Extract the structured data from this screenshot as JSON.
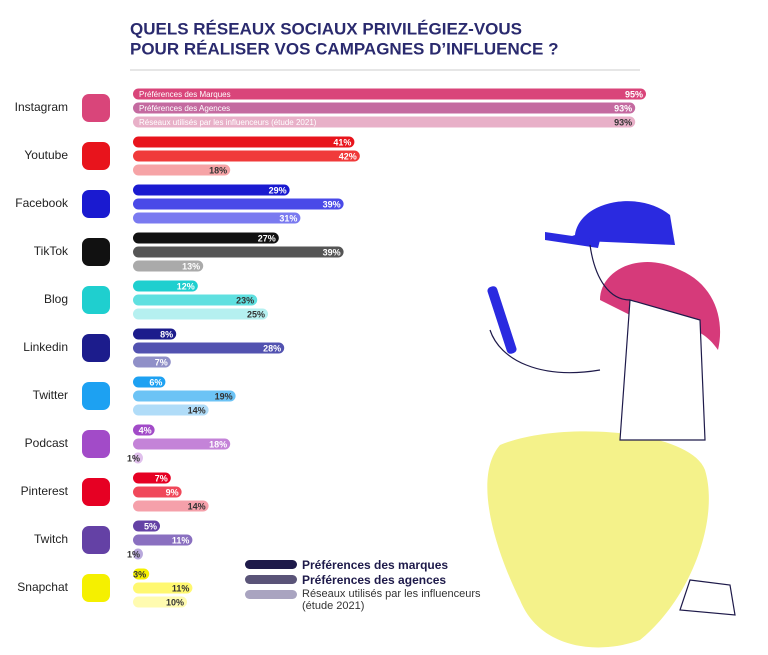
{
  "chart_data": {
    "type": "bar",
    "orientation": "horizontal",
    "title": [
      "QUELS RÉSEAUX SOCIAUX PRIVILÉGIEZ-VOUS",
      "POUR RÉALISER VOS CAMPAGNES D’INFLUENCE ?"
    ],
    "categories": [
      "Instagram",
      "Youtube",
      "Facebook",
      "TikTok",
      "Blog",
      "Linkedin",
      "Twitter",
      "Podcast",
      "Pinterest",
      "Twitch",
      "Snapchat"
    ],
    "inbar_labels": [
      "Préférences des Marques",
      "Préférences des Agences",
      "Réseaux utilisés par les influenceurs (étude 2021)"
    ],
    "series": [
      {
        "name": "Préférences des marques",
        "color": "#1e1a4a",
        "values": [
          95,
          41,
          29,
          27,
          12,
          8,
          6,
          4,
          7,
          5,
          3
        ],
        "value_labels": [
          "95%",
          "41%",
          "29%",
          "27%",
          "12%",
          "8%",
          "6%",
          "4%",
          "7%",
          "5%",
          "3%"
        ]
      },
      {
        "name": "Préférences des agences",
        "color": "#5a5478",
        "values": [
          93,
          42,
          39,
          39,
          23,
          28,
          19,
          18,
          9,
          11,
          11
        ],
        "value_labels": [
          "93%",
          "42%",
          "39%",
          "39%",
          "23%",
          "28%",
          "19%",
          "18%",
          "9%",
          "11%",
          "11%"
        ]
      },
      {
        "name": "Réseaux utilisés par les influenceurs (étude 2021)",
        "color": "#a9a4c0",
        "values": [
          93,
          18,
          31,
          13,
          25,
          7,
          14,
          1,
          14,
          1,
          10
        ],
        "value_labels": [
          "93%",
          "18%",
          "31%",
          "13%",
          "25%",
          "7%",
          "14%",
          "1%",
          "14%",
          "1%",
          "10%"
        ]
      }
    ],
    "bar_colors": [
      [
        "#d9457a",
        "#c46aa0",
        "#e8b0c8"
      ],
      [
        "#e8141c",
        "#f03a3a",
        "#f6a3a6"
      ],
      [
        "#1a1ad0",
        "#4a4ae8",
        "#7a7af0"
      ],
      [
        "#111111",
        "#555555",
        "#aaaaaa"
      ],
      [
        "#1fcfcf",
        "#5fe0e0",
        "#b5f0f0"
      ],
      [
        "#1c1c8c",
        "#5252b0",
        "#9090c8"
      ],
      [
        "#1da1f2",
        "#6cc3f5",
        "#b0dcf8"
      ],
      [
        "#a24bc8",
        "#c483d8",
        "#e0c0ec"
      ],
      [
        "#e60023",
        "#f0485a",
        "#f5a0aa"
      ],
      [
        "#6441a5",
        "#8a70c0",
        "#b8a8dc"
      ],
      [
        "#f5f000",
        "#fff870",
        "#fffbb0"
      ]
    ]
  }
}
